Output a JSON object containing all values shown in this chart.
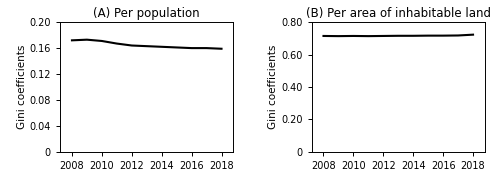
{
  "title_A": "(A) Per population",
  "title_B": "(B) Per area of inhabitable land",
  "ylabel": "Gini coefficients",
  "years": [
    2008,
    2009,
    2010,
    2011,
    2012,
    2013,
    2014,
    2015,
    2016,
    2017,
    2018
  ],
  "values_A": [
    0.172,
    0.173,
    0.171,
    0.167,
    0.164,
    0.163,
    0.162,
    0.161,
    0.16,
    0.16,
    0.159
  ],
  "values_B": [
    0.715,
    0.714,
    0.715,
    0.714,
    0.715,
    0.716,
    0.716,
    0.717,
    0.717,
    0.718,
    0.723
  ],
  "ylim_A": [
    0,
    0.2
  ],
  "ylim_B": [
    0,
    0.8
  ],
  "yticks_A": [
    0,
    0.04,
    0.08,
    0.12,
    0.16,
    0.2
  ],
  "ytick_labels_A": [
    "0",
    "0.04",
    "0.08",
    "0.12",
    "0.16",
    "0.20"
  ],
  "yticks_B": [
    0,
    0.2,
    0.4,
    0.6,
    0.8
  ],
  "ytick_labels_B": [
    "0",
    "0.20",
    "0.40",
    "0.60",
    "0.80"
  ],
  "xticks": [
    2008,
    2010,
    2012,
    2014,
    2016,
    2018
  ],
  "xlim": [
    2007.2,
    2018.8
  ],
  "line_color": "#000000",
  "line_width": 1.5,
  "title_fontsize": 8.5,
  "label_fontsize": 7.5,
  "tick_fontsize": 7
}
